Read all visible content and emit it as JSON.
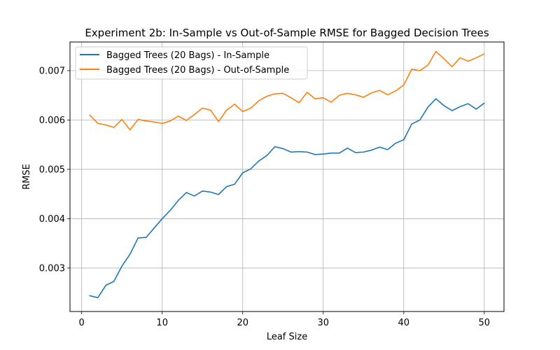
{
  "chart_data": {
    "type": "line",
    "title": "Experiment 2b: In-Sample vs Out-of-Sample RMSE for Bagged Decision Trees",
    "xlabel": "Leaf Size",
    "ylabel": "RMSE",
    "xlim": [
      -1.45,
      52.45
    ],
    "ylim": [
      0.00212,
      0.00758
    ],
    "xticks": [
      0,
      10,
      20,
      30,
      40,
      50
    ],
    "yticks": [
      0.003,
      0.004,
      0.005,
      0.006,
      0.007
    ],
    "xtick_labels": [
      "0",
      "10",
      "20",
      "30",
      "40",
      "50"
    ],
    "ytick_labels": [
      "0.003",
      "0.004",
      "0.005",
      "0.006",
      "0.007"
    ],
    "grid": true,
    "legend_position": "upper-left",
    "x": [
      1,
      2,
      3,
      4,
      5,
      6,
      7,
      8,
      9,
      10,
      11,
      12,
      13,
      14,
      15,
      16,
      17,
      18,
      19,
      20,
      21,
      22,
      23,
      24,
      25,
      26,
      27,
      28,
      29,
      30,
      31,
      32,
      33,
      34,
      35,
      36,
      37,
      38,
      39,
      40,
      41,
      42,
      43,
      44,
      45,
      46,
      47,
      48,
      49,
      50
    ],
    "series": [
      {
        "name": "Bagged Trees (20 Bags) - In-Sample",
        "color": "#1f77b4",
        "values": [
          0.00244,
          0.0024,
          0.00265,
          0.00273,
          0.00304,
          0.00328,
          0.00361,
          0.00362,
          0.00381,
          0.004,
          0.00417,
          0.00437,
          0.00453,
          0.00446,
          0.00456,
          0.00454,
          0.00449,
          0.00465,
          0.0047,
          0.00493,
          0.00501,
          0.00517,
          0.00528,
          0.00546,
          0.00542,
          0.00535,
          0.00536,
          0.00535,
          0.0053,
          0.00531,
          0.00533,
          0.00533,
          0.00543,
          0.00534,
          0.00535,
          0.00539,
          0.00545,
          0.0054,
          0.00553,
          0.0056,
          0.00592,
          0.006,
          0.00626,
          0.00643,
          0.00629,
          0.00619,
          0.00627,
          0.00633,
          0.00622,
          0.00634
        ]
      },
      {
        "name": "Bagged Trees (20 Bags) - Out-of-Sample",
        "color": "#ff7f0e",
        "values": [
          0.0061,
          0.00593,
          0.0059,
          0.00585,
          0.00601,
          0.0058,
          0.00601,
          0.00598,
          0.00596,
          0.00593,
          0.00598,
          0.00608,
          0.00599,
          0.00611,
          0.00624,
          0.0062,
          0.00597,
          0.0062,
          0.00632,
          0.00617,
          0.00624,
          0.00639,
          0.00648,
          0.00653,
          0.00654,
          0.00645,
          0.00635,
          0.00656,
          0.00643,
          0.00645,
          0.00636,
          0.0065,
          0.00654,
          0.00651,
          0.00646,
          0.00655,
          0.0066,
          0.00651,
          0.00659,
          0.00671,
          0.00703,
          0.007,
          0.00711,
          0.00739,
          0.00724,
          0.00708,
          0.00726,
          0.00719,
          0.00726,
          0.00734
        ]
      }
    ]
  }
}
